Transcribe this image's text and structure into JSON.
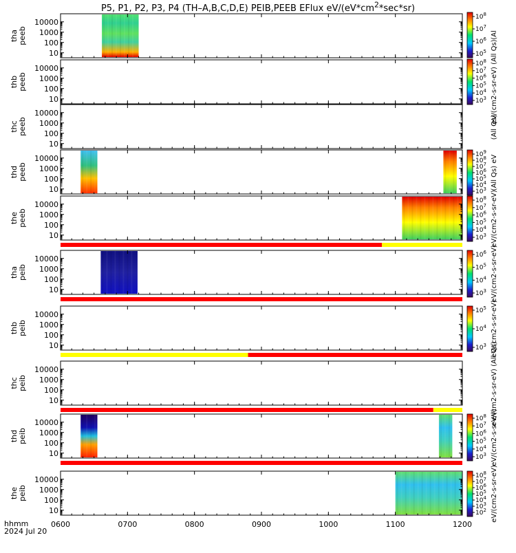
{
  "title": "P5, P1, P2, P3, P4 (TH-A,B,C,D,E) PEIB,PEEB EFlux eV/(eV*cm2*sec*sr)",
  "title_html": "P5, P1, P2, P3, P4 (TH–A,B,C,D,E) PEIB,PEEB EFlux eV/(eV*cm<sup>2</sup>*sec*sr)",
  "footer": {
    "line1": "hhmm",
    "line2": "2024 Jul 20"
  },
  "colors": {
    "flag_red": "#ff0000",
    "flag_yellow": "#ffff00",
    "frame": "#000000"
  },
  "chart_data": {
    "type": "heatmap",
    "x_axis": {
      "label": "hhmm",
      "range": [
        "0600",
        "1200"
      ],
      "ticks": [
        "0600",
        "0700",
        "0800",
        "0900",
        "1000",
        "1100",
        "1200"
      ]
    },
    "y_scale": "log",
    "panels": [
      {
        "ylabel": [
          "tha",
          "peeb"
        ],
        "yticks": [
          "10",
          "100",
          "1000",
          "10000"
        ],
        "coverage": [
          [
            "0637",
            "0710"
          ]
        ],
        "colorbar": {
          "ticks": [
            "10^5",
            "10^6",
            "10^7",
            "10^8"
          ],
          "label": "(Al"
        }
      },
      {
        "ylabel": [
          "thb",
          "peeb"
        ],
        "yticks": [
          "10",
          "100",
          "1000",
          "10000"
        ],
        "coverage": [],
        "colorbar": {
          "ticks": [
            "10^3",
            "10^4",
            "10^5",
            "10^6",
            "10^7",
            "10^8"
          ],
          "label": "eV/(cm2-s-sr-eV) (All Qs)"
        }
      },
      {
        "ylabel": [
          "thc",
          "peeb"
        ],
        "yticks": [
          "10",
          "100",
          "1000",
          "10000"
        ],
        "coverage": [],
        "colorbar": {
          "ticks": [],
          "label": "(All Qs)"
        }
      },
      {
        "ylabel": [
          "thd",
          "peeb"
        ],
        "yticks": [
          "10",
          "100",
          "1000",
          "10000"
        ],
        "coverage": [
          [
            "0618",
            "0633"
          ],
          [
            "1143",
            "1155"
          ]
        ],
        "colorbar": {
          "ticks": [
            "10^3",
            "10^4",
            "10^5",
            "10^6",
            "10^7",
            "10^8",
            "10^9"
          ],
          "label": "(All Qs) eV"
        }
      },
      {
        "ylabel": [
          "the",
          "peeb"
        ],
        "yticks": [
          "10",
          "100",
          "1000",
          "10000"
        ],
        "coverage": [
          [
            "1106",
            "1200"
          ]
        ],
        "colorbar": {
          "ticks": [
            "10^3",
            "10^4",
            "10^5",
            "10^6",
            "10^7",
            "10^8"
          ],
          "label": "eV/(cm2-s-sr-eV)"
        },
        "flag_bar": [
          {
            "from": "0600",
            "to": "1048",
            "color": "red"
          },
          {
            "from": "1048",
            "to": "1200",
            "color": "yellow"
          }
        ]
      },
      {
        "ylabel": [
          "tha",
          "peib"
        ],
        "yticks": [
          "10",
          "100",
          "1000",
          "10000"
        ],
        "coverage": [
          [
            "0636",
            "0709"
          ]
        ],
        "colorbar": {
          "ticks": [
            "10^3",
            "10^4",
            "10^5",
            "10^6"
          ],
          "label": "eV/(cm2-s-sr-eV)"
        },
        "flag_bar": [
          {
            "from": "0600",
            "to": "1200",
            "color": "red"
          }
        ]
      },
      {
        "ylabel": [
          "thb",
          "peib"
        ],
        "yticks": [
          "10",
          "100",
          "1000",
          "10000"
        ],
        "coverage": [],
        "colorbar": {
          "ticks": [
            "10^3",
            "10^4",
            "10^5"
          ],
          "label": "eV/(cm2-s-sr-eV)"
        },
        "flag_bar": [
          {
            "from": "0600",
            "to": "0848",
            "color": "yellow"
          },
          {
            "from": "0848",
            "to": "1200",
            "color": "red"
          }
        ]
      },
      {
        "ylabel": [
          "thc",
          "peib"
        ],
        "yticks": [
          "10",
          "100",
          "1000",
          "10000"
        ],
        "coverage": [],
        "colorbar": {
          "ticks": [],
          "label": "eV/(cm2-s-sr-eV) (All Qs)"
        },
        "flag_bar": [
          {
            "from": "0600",
            "to": "1134",
            "color": "red"
          },
          {
            "from": "1134",
            "to": "1200",
            "color": "yellow"
          }
        ]
      },
      {
        "ylabel": [
          "thd",
          "peib"
        ],
        "yticks": [
          "10",
          "100",
          "1000",
          "10000"
        ],
        "coverage": [
          [
            "0618",
            "0633"
          ],
          [
            "1139",
            "1151"
          ]
        ],
        "colorbar": {
          "ticks": [
            "10^3",
            "10^4",
            "10^5",
            "10^6",
            "10^7",
            "10^8"
          ],
          "label": "eV/(cm2-s-sr-eV)"
        },
        "flag_bar": [
          {
            "from": "0600",
            "to": "1200",
            "color": "red"
          }
        ]
      },
      {
        "ylabel": [
          "the",
          "peib"
        ],
        "yticks": [
          "10",
          "100",
          "1000",
          "10000"
        ],
        "coverage": [
          [
            "1100",
            "1200"
          ]
        ],
        "colorbar": {
          "ticks": [
            "10^2",
            "10^3",
            "10^4",
            "10^5",
            "10^6",
            "10^7",
            "10^8"
          ],
          "label": "eV/(cm2-s-sr-eV)"
        }
      }
    ]
  }
}
